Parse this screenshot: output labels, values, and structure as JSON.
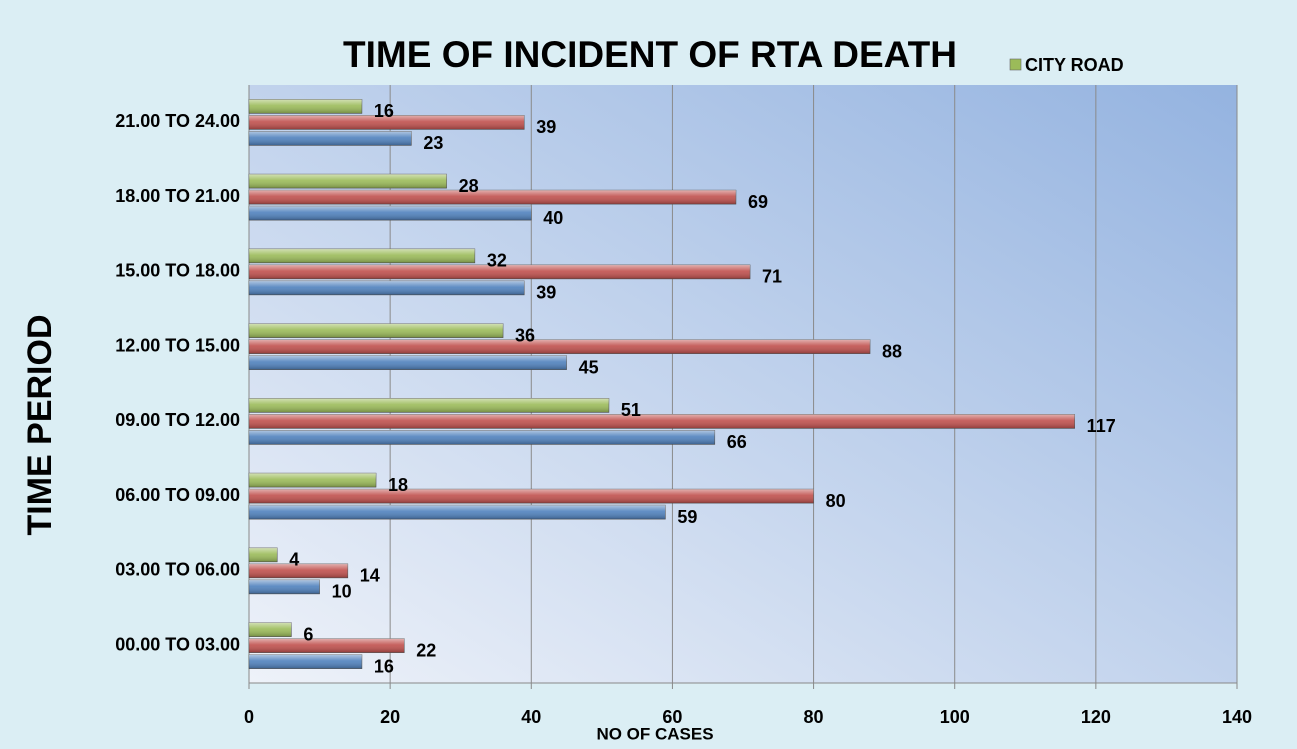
{
  "chart_data": {
    "type": "hbar",
    "title": "TIME OF INCIDENT OF RTA DEATH",
    "xlabel": "NO OF CASES",
    "ylabel": "TIME PERIOD",
    "categories": [
      "00.00 TO 03.00",
      "03.00 TO 06.00",
      "06.00 TO 09.00",
      "09.00 TO 12.00",
      "12.00 TO 15.00",
      "15.00 TO 18.00",
      "18.00 TO 21.00",
      "21.00 TO 24.00"
    ],
    "series": [
      {
        "color": "#4f81bd",
        "values": [
          16,
          10,
          59,
          66,
          45,
          39,
          40,
          23
        ]
      },
      {
        "color": "#c0504d",
        "values": [
          22,
          14,
          80,
          117,
          88,
          71,
          69,
          39
        ]
      },
      {
        "name": "CITY ROAD",
        "color": "#9bbb59",
        "values": [
          6,
          4,
          18,
          51,
          36,
          32,
          28,
          16
        ]
      }
    ],
    "xlim": [
      0,
      140
    ],
    "xticks": [
      0,
      20,
      40,
      60,
      80,
      100,
      120,
      140
    ],
    "grid": true,
    "legend": "top-right"
  }
}
